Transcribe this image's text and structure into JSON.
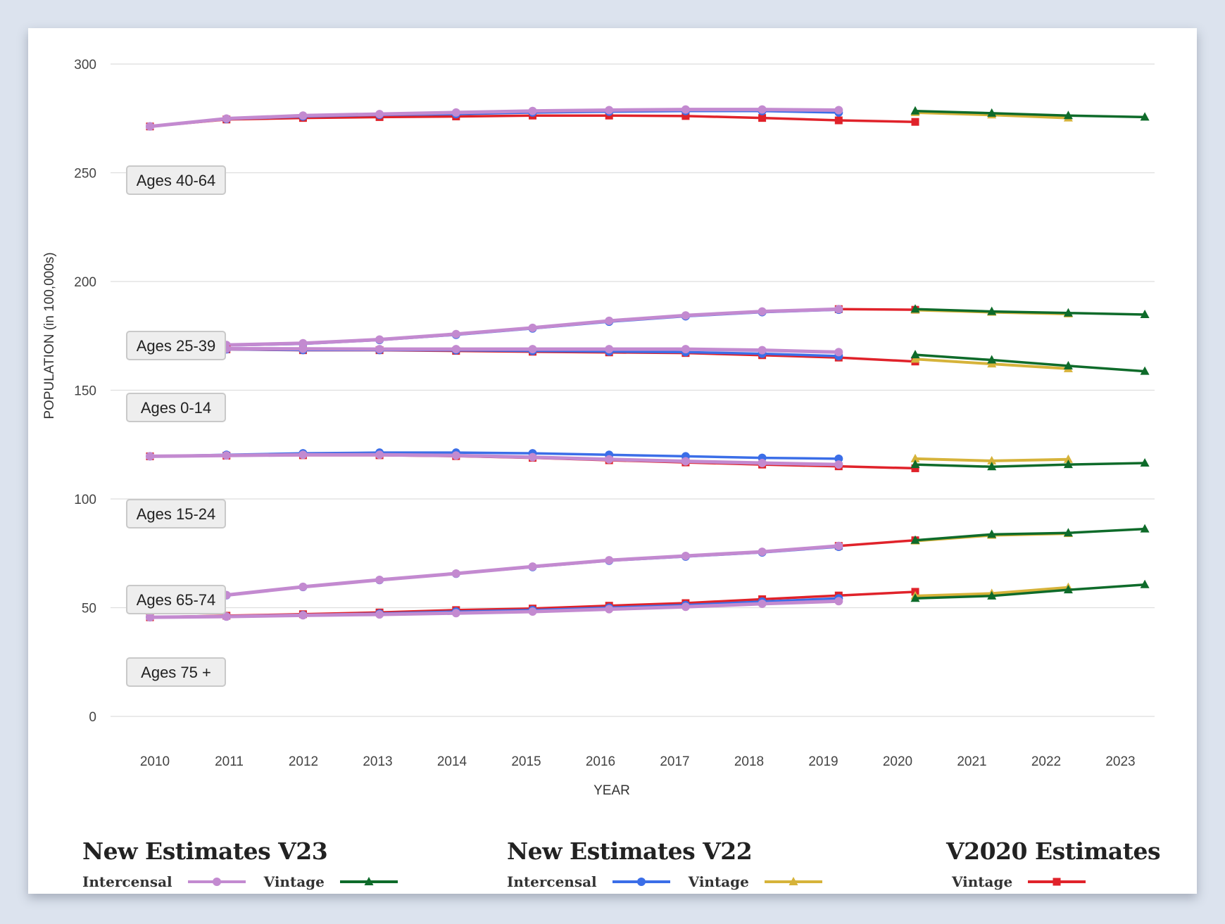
{
  "chart_data": {
    "type": "line",
    "title": "",
    "xlabel": "YEAR",
    "ylabel": "POPULATION (in 100,000s)",
    "ylim": [
      0,
      300
    ],
    "yticks": [
      0,
      50,
      100,
      150,
      200,
      250,
      300
    ],
    "xticks": [
      "2010",
      "2011",
      "2012",
      "2013",
      "2014",
      "2015",
      "2016",
      "2017",
      "2018",
      "2019",
      "2020",
      "2021",
      "2022",
      "2023"
    ],
    "grid": true,
    "colors": {
      "v23_intercensal": "#c38ad0",
      "v23_vintage": "#0e6b2a",
      "v22_intercensal": "#3b6ee8",
      "v22_vintage": "#d6b33a",
      "v2020_vintage": "#e0222a"
    },
    "age_groups": [
      {
        "label": "Ages 40-64",
        "series": {
          "v2020_vintage": {
            "x": [
              2010,
              2011,
              2012,
              2013,
              2014,
              2015,
              2016,
              2017,
              2018,
              2019,
              2020
            ],
            "y": [
              271.3,
              274.5,
              275.2,
              275.6,
              275.9,
              276.3,
              276.3,
              276.1,
              275.2,
              274.1,
              273.4
            ]
          },
          "v22_intercensal": {
            "x": [
              2010,
              2011,
              2012,
              2013,
              2014,
              2015,
              2016,
              2017,
              2018,
              2019
            ],
            "y": [
              271.3,
              274.7,
              275.9,
              276.6,
              277.0,
              277.7,
              278.1,
              278.4,
              278.4,
              277.7
            ]
          },
          "v23_intercensal": {
            "x": [
              2010,
              2011,
              2012,
              2013,
              2014,
              2015,
              2016,
              2017,
              2018,
              2019
            ],
            "y": [
              271.3,
              274.9,
              276.3,
              277.0,
              277.7,
              278.4,
              278.8,
              279.1,
              279.1,
              278.8
            ]
          },
          "v22_vintage": {
            "x": [
              2020,
              2021,
              2022
            ],
            "y": [
              277.7,
              276.6,
              275.2
            ]
          },
          "v23_vintage": {
            "x": [
              2020,
              2021,
              2022,
              2023
            ],
            "y": [
              278.4,
              277.4,
              276.3,
              275.6
            ]
          }
        }
      },
      {
        "label": "Ages 25-39",
        "series": {
          "v2020_vintage": {
            "x": [
              2019,
              2020
            ],
            "y": [
              187.3,
              187.0
            ]
          },
          "v22_intercensal": {
            "x": [
              2010,
              2011,
              2012,
              2013,
              2014,
              2015,
              2016,
              2017,
              2018,
              2019
            ],
            "y": [
              170.0,
              170.6,
              171.3,
              173.1,
              175.5,
              178.4,
              181.5,
              184.0,
              185.9,
              187.0
            ]
          },
          "v23_intercensal": {
            "x": [
              2010,
              2011,
              2012,
              2013,
              2014,
              2015,
              2016,
              2017,
              2018,
              2019
            ],
            "y": [
              170.3,
              170.8,
              171.6,
              173.3,
              175.8,
              178.7,
              181.9,
              184.4,
              186.2,
              187.3
            ]
          },
          "v22_vintage": {
            "x": [
              2020,
              2021,
              2022
            ],
            "y": [
              186.9,
              185.9,
              185.1
            ]
          },
          "v23_vintage": {
            "x": [
              2020,
              2021,
              2022,
              2023
            ],
            "y": [
              187.3,
              186.2,
              185.5,
              184.8
            ]
          }
        }
      },
      {
        "label": "Ages 0-14",
        "series": {
          "v2020_vintage": {
            "x": [
              2010,
              2011,
              2012,
              2013,
              2014,
              2015,
              2016,
              2017,
              2018,
              2019,
              2020
            ],
            "y": [
              168.8,
              168.8,
              168.4,
              168.4,
              168.1,
              167.7,
              167.4,
              167.1,
              166.1,
              165.0,
              163.2
            ]
          },
          "v22_intercensal": {
            "x": [
              2010,
              2011,
              2012,
              2013,
              2014,
              2015,
              2016,
              2017,
              2018,
              2019
            ],
            "y": [
              168.8,
              168.8,
              168.5,
              168.5,
              168.4,
              168.1,
              167.8,
              167.5,
              166.8,
              165.7
            ]
          },
          "v23_intercensal": {
            "x": [
              2010,
              2011,
              2012,
              2013,
              2014,
              2015,
              2016,
              2017,
              2018,
              2019
            ],
            "y": [
              169.1,
              169.1,
              169.0,
              168.9,
              168.9,
              168.9,
              168.9,
              168.9,
              168.4,
              167.5
            ]
          },
          "v22_vintage": {
            "x": [
              2020,
              2021,
              2022
            ],
            "y": [
              164.3,
              162.1,
              159.9
            ]
          },
          "v23_vintage": {
            "x": [
              2020,
              2021,
              2022,
              2023
            ],
            "y": [
              166.3,
              163.9,
              161.2,
              158.7
            ]
          }
        }
      },
      {
        "label": "Ages 15-24",
        "series": {
          "v2020_vintage": {
            "x": [
              2010,
              2011,
              2012,
              2013,
              2014,
              2015,
              2016,
              2017,
              2018,
              2019,
              2020
            ],
            "y": [
              119.6,
              119.9,
              120.1,
              120.1,
              119.7,
              118.9,
              117.8,
              116.8,
              115.8,
              115.0,
              114.1
            ]
          },
          "v22_intercensal": {
            "x": [
              2010,
              2011,
              2012,
              2013,
              2014,
              2015,
              2016,
              2017,
              2018,
              2019
            ],
            "y": [
              119.6,
              120.3,
              121.0,
              121.3,
              121.3,
              121.0,
              120.3,
              119.6,
              118.9,
              118.5
            ]
          },
          "v23_intercensal": {
            "x": [
              2010,
              2011,
              2012,
              2013,
              2014,
              2015,
              2016,
              2017,
              2018,
              2019
            ],
            "y": [
              119.6,
              120.0,
              120.3,
              120.3,
              120.0,
              119.2,
              118.2,
              117.3,
              116.5,
              115.8
            ]
          },
          "v22_vintage": {
            "x": [
              2020,
              2021,
              2022
            ],
            "y": [
              118.5,
              117.5,
              118.2
            ]
          },
          "v23_vintage": {
            "x": [
              2020,
              2021,
              2022,
              2023
            ],
            "y": [
              115.8,
              114.8,
              115.8,
              116.5
            ]
          }
        }
      },
      {
        "label": "Ages 65-74",
        "series": {
          "v2020_vintage": {
            "x": [
              2019,
              2020
            ],
            "y": [
              78.4,
              81.0
            ]
          },
          "v22_intercensal": {
            "x": [
              2010,
              2011,
              2012,
              2013,
              2014,
              2015,
              2016,
              2017,
              2018,
              2019
            ],
            "y": [
              53.9,
              55.7,
              59.5,
              62.7,
              65.6,
              68.7,
              71.6,
              73.5,
              75.4,
              78.0
            ]
          },
          "v23_intercensal": {
            "x": [
              2010,
              2011,
              2012,
              2013,
              2014,
              2015,
              2016,
              2017,
              2018,
              2019
            ],
            "y": [
              54.0,
              55.8,
              59.6,
              62.8,
              65.7,
              68.9,
              71.8,
              73.8,
              75.7,
              78.4
            ]
          },
          "v22_vintage": {
            "x": [
              2020,
              2021,
              2022
            ],
            "y": [
              80.7,
              83.3,
              84.1
            ]
          },
          "v23_vintage": {
            "x": [
              2020,
              2021,
              2022,
              2023
            ],
            "y": [
              81.0,
              83.7,
              84.4,
              86.2
            ]
          }
        }
      },
      {
        "label": "Ages 75 +",
        "series": {
          "v2020_vintage": {
            "x": [
              2010,
              2011,
              2012,
              2013,
              2014,
              2015,
              2016,
              2017,
              2018,
              2019,
              2020
            ],
            "y": [
              45.6,
              46.3,
              47.0,
              47.8,
              48.9,
              49.6,
              50.9,
              52.1,
              53.9,
              55.6,
              57.3
            ]
          },
          "v22_intercensal": {
            "x": [
              2010,
              2011,
              2012,
              2013,
              2014,
              2015,
              2016,
              2017,
              2018,
              2019
            ],
            "y": [
              45.6,
              45.9,
              46.6,
              47.3,
              48.2,
              48.9,
              50.0,
              51.2,
              52.8,
              54.3
            ]
          },
          "v23_intercensal": {
            "x": [
              2010,
              2011,
              2012,
              2013,
              2014,
              2015,
              2016,
              2017,
              2018,
              2019
            ],
            "y": [
              45.6,
              45.9,
              46.5,
              46.9,
              47.5,
              48.2,
              49.3,
              50.4,
              51.8,
              53.0
            ]
          },
          "v22_vintage": {
            "x": [
              2020,
              2021,
              2022
            ],
            "y": [
              55.4,
              56.5,
              59.3
            ]
          },
          "v23_vintage": {
            "x": [
              2020,
              2021,
              2022,
              2023
            ],
            "y": [
              54.3,
              55.4,
              58.2,
              60.6
            ]
          }
        }
      }
    ],
    "legend": [
      {
        "title": "New Estimates V23",
        "entries": [
          {
            "label": "Intercensal",
            "key": "v23_intercensal",
            "marker": "circle"
          },
          {
            "label": "Vintage",
            "key": "v23_vintage",
            "marker": "triangle"
          }
        ]
      },
      {
        "title": "New Estimates V22",
        "entries": [
          {
            "label": "Intercensal",
            "key": "v22_intercensal",
            "marker": "circle"
          },
          {
            "label": "Vintage",
            "key": "v22_vintage",
            "marker": "triangle"
          }
        ]
      },
      {
        "title": "V2020 Estimates",
        "entries": [
          {
            "label": "Vintage",
            "key": "v2020_vintage",
            "marker": "square"
          }
        ]
      }
    ],
    "legend_position": "bottom"
  }
}
